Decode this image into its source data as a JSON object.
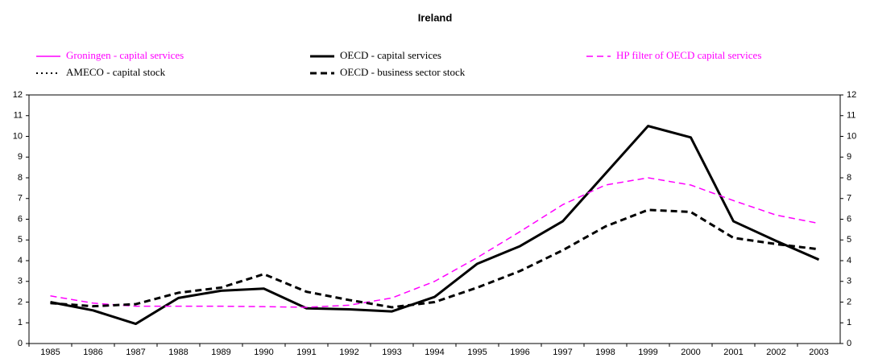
{
  "chart_data": {
    "type": "line",
    "title": "Ireland",
    "categories": [
      "1985",
      "1986",
      "1987",
      "1988",
      "1989",
      "1990",
      "1991",
      "1992",
      "1993",
      "1994",
      "1995",
      "1996",
      "1997",
      "1998",
      "1999",
      "2000",
      "2001",
      "2002",
      "2003"
    ],
    "series": [
      {
        "name": "Groningen - capital services",
        "color": "#ff00ff",
        "dash": "solid",
        "width": 1.5,
        "values": [
          null,
          null,
          null,
          null,
          null,
          null,
          null,
          null,
          null,
          null,
          null,
          null,
          null,
          null,
          null,
          null,
          null,
          null,
          null
        ]
      },
      {
        "name": "OECD - capital services",
        "color": "#000000",
        "dash": "solid",
        "width": 3,
        "values": [
          2.0,
          1.6,
          0.95,
          2.2,
          2.55,
          2.65,
          1.7,
          1.65,
          1.55,
          2.25,
          3.85,
          4.7,
          5.9,
          8.2,
          10.5,
          9.95,
          5.9,
          4.95,
          4.05
        ]
      },
      {
        "name": "HP filter of OECD capital services",
        "color": "#ff00ff",
        "dash": "dashed",
        "width": 1.5,
        "values": [
          2.3,
          1.95,
          1.8,
          1.8,
          1.8,
          1.78,
          1.75,
          1.85,
          2.2,
          3.0,
          4.15,
          5.4,
          6.7,
          7.65,
          8.0,
          7.65,
          6.9,
          6.2,
          5.8
        ]
      },
      {
        "name": "AMECO - capital stock",
        "color": "#000000",
        "dash": "dotted",
        "width": 2,
        "values": [
          null,
          null,
          null,
          null,
          null,
          null,
          null,
          null,
          null,
          null,
          null,
          null,
          null,
          null,
          null,
          null,
          null,
          null,
          null
        ]
      },
      {
        "name": "OECD - business sector stock",
        "color": "#000000",
        "dash": "dashed",
        "width": 3,
        "values": [
          1.95,
          1.8,
          1.9,
          2.45,
          2.7,
          3.35,
          2.5,
          2.1,
          1.75,
          2.0,
          2.7,
          3.5,
          4.5,
          5.65,
          6.45,
          6.35,
          5.1,
          4.8,
          4.55
        ]
      }
    ],
    "ylim": [
      0,
      12
    ],
    "yticks": [
      0,
      1,
      2,
      3,
      4,
      5,
      6,
      7,
      8,
      9,
      10,
      11,
      12
    ],
    "y2lim": [
      0,
      12
    ],
    "y2ticks": [
      0,
      1,
      2,
      3,
      4,
      5,
      6,
      7,
      8,
      9,
      10,
      11,
      12
    ]
  }
}
